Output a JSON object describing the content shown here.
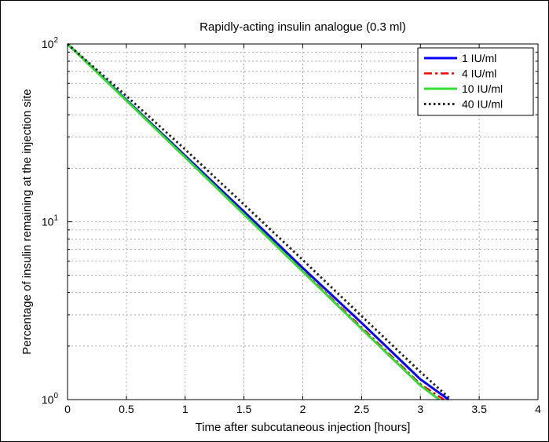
{
  "chart_data": {
    "type": "line",
    "title": "Rapidly-acting insulin analogue (0.3 ml)",
    "xlabel": "Time after subcutaneous injection [hours]",
    "ylabel": "Percentage of insulin remaining at the injection site",
    "xlim": [
      0,
      4
    ],
    "ylim": [
      1,
      100
    ],
    "yscale": "log",
    "grid": true,
    "legend_position": "top-right",
    "x_ticks": [
      "0",
      "0.5",
      "1",
      "1.5",
      "2",
      "2.5",
      "3",
      "3.5",
      "4"
    ],
    "y_ticks": [
      {
        "base": "10",
        "exp": "0",
        "value": 1
      },
      {
        "base": "10",
        "exp": "1",
        "value": 10
      },
      {
        "base": "10",
        "exp": "2",
        "value": 100
      }
    ],
    "series": [
      {
        "name": "1 IU/ml",
        "color": "#0000ff",
        "style": "solid",
        "x": [
          0,
          0.5,
          1,
          1.5,
          2,
          2.5,
          3,
          3.24
        ],
        "y": [
          100,
          48.5,
          23.5,
          11.4,
          5.5,
          2.7,
          1.3,
          1.0
        ]
      },
      {
        "name": "4 IU/ml",
        "color": "#ff0000",
        "style": "dashdot",
        "x": [
          0,
          0.5,
          1,
          1.5,
          2,
          2.5,
          3,
          3.2
        ],
        "y": [
          100,
          48.0,
          23.0,
          11.0,
          5.3,
          2.55,
          1.22,
          1.0
        ]
      },
      {
        "name": "10 IU/ml",
        "color": "#33dd33",
        "style": "solid",
        "x": [
          0,
          0.5,
          1,
          1.5,
          2,
          2.5,
          3,
          3.16
        ],
        "y": [
          100,
          48.0,
          23.0,
          11.0,
          5.25,
          2.5,
          1.2,
          1.0
        ]
      },
      {
        "name": "40 IU/ml",
        "color": "#222222",
        "style": "dotted",
        "x": [
          0,
          0.5,
          1,
          1.5,
          2,
          2.5,
          3,
          3.26
        ],
        "y": [
          100,
          51.0,
          25.5,
          12.5,
          6.1,
          2.95,
          1.43,
          1.0
        ]
      }
    ]
  }
}
